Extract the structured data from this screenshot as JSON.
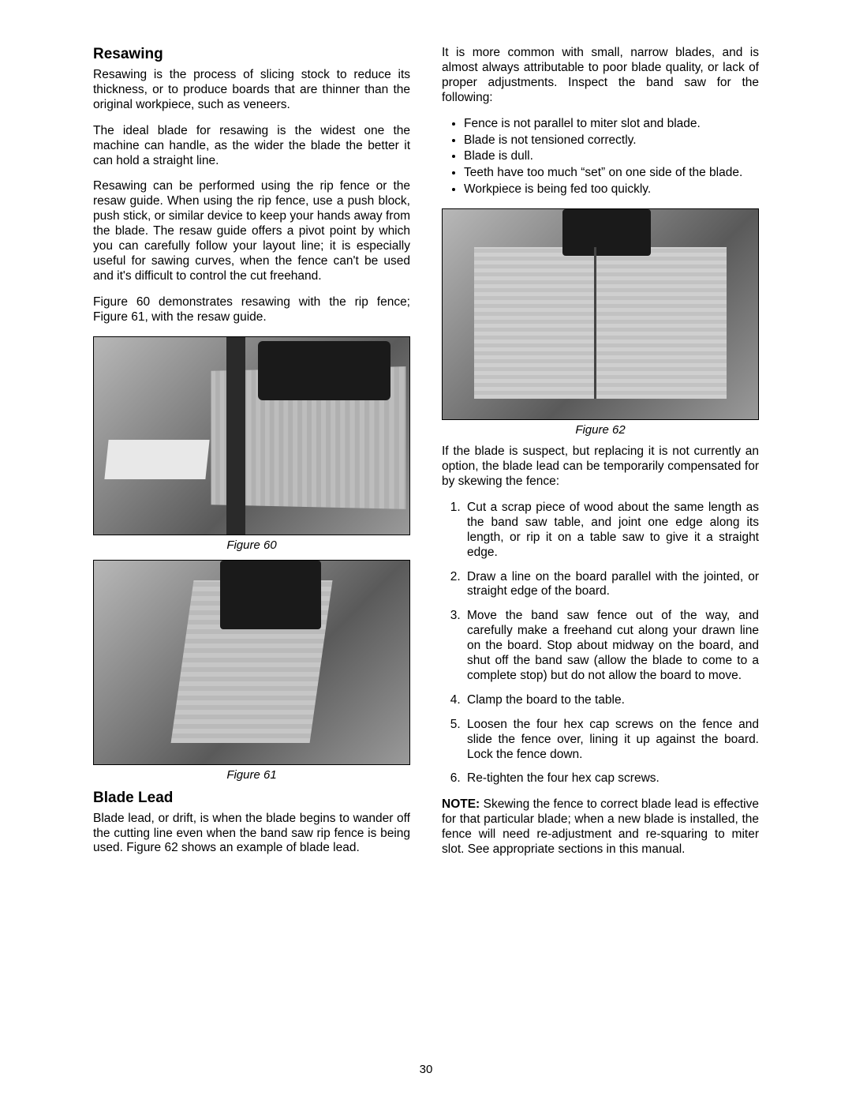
{
  "page_number": "30",
  "left": {
    "heading1": "Resawing",
    "p1": "Resawing is the process of slicing stock to reduce its thickness, or to produce boards that are thinner than the original workpiece, such as veneers.",
    "p2": "The ideal blade for resawing is the widest one the machine can handle, as the wider the blade the better it can hold a straight line.",
    "p3": "Resawing can be performed using the rip fence or the resaw guide. When using the rip fence, use a push block, push stick, or similar device to keep your hands away from the blade. The resaw guide offers a pivot point by which you can carefully follow your layout line; it is especially useful for sawing curves, when the fence can't be used and it's difficult to control the cut freehand.",
    "p4": "Figure 60 demonstrates resawing with the rip fence; Figure 61, with the resaw guide.",
    "fig60_caption": "Figure 60",
    "fig61_caption": "Figure 61",
    "heading2": "Blade Lead",
    "p5": "Blade lead, or drift, is when the blade begins to wander off the cutting line even when the band saw rip fence is being used. Figure 62 shows an example of blade lead."
  },
  "right": {
    "p1": "It is more common with small, narrow blades, and is almost always attributable to poor blade quality, or lack of proper adjustments. Inspect the band saw for the following:",
    "bullets": [
      "Fence is not parallel to miter slot and blade.",
      "Blade is not tensioned correctly.",
      "Blade is dull.",
      "Teeth have too much “set” on one side of the blade.",
      "Workpiece is being fed too quickly."
    ],
    "fig62_caption": "Figure 62",
    "p2": "If the blade is suspect, but replacing it is not currently an option, the blade lead can be temporarily compensated for by skewing the fence:",
    "steps": [
      "Cut a scrap piece of wood about the same length as the band saw table, and joint one edge along its length, or rip it on a table saw to give it a straight edge.",
      "Draw a line on the board parallel with the jointed, or straight edge of the board.",
      "Move the band saw fence out of the way, and carefully make a freehand cut along your drawn line on the board. Stop about midway on the board, and shut off the band saw (allow the blade to come to a complete stop) but do not allow the board to move.",
      "Clamp the board to the table.",
      "Loosen the four hex cap screws on the fence and slide the fence over, lining it up against the board. Lock the fence down.",
      "Re-tighten the four hex cap screws."
    ],
    "note_label": "NOTE:",
    "note_text": " Skewing the fence to correct blade lead is effective for that particular blade; when a new blade is installed, the fence will need re-adjustment and re-squaring to miter slot. See appropriate sections in this manual."
  }
}
